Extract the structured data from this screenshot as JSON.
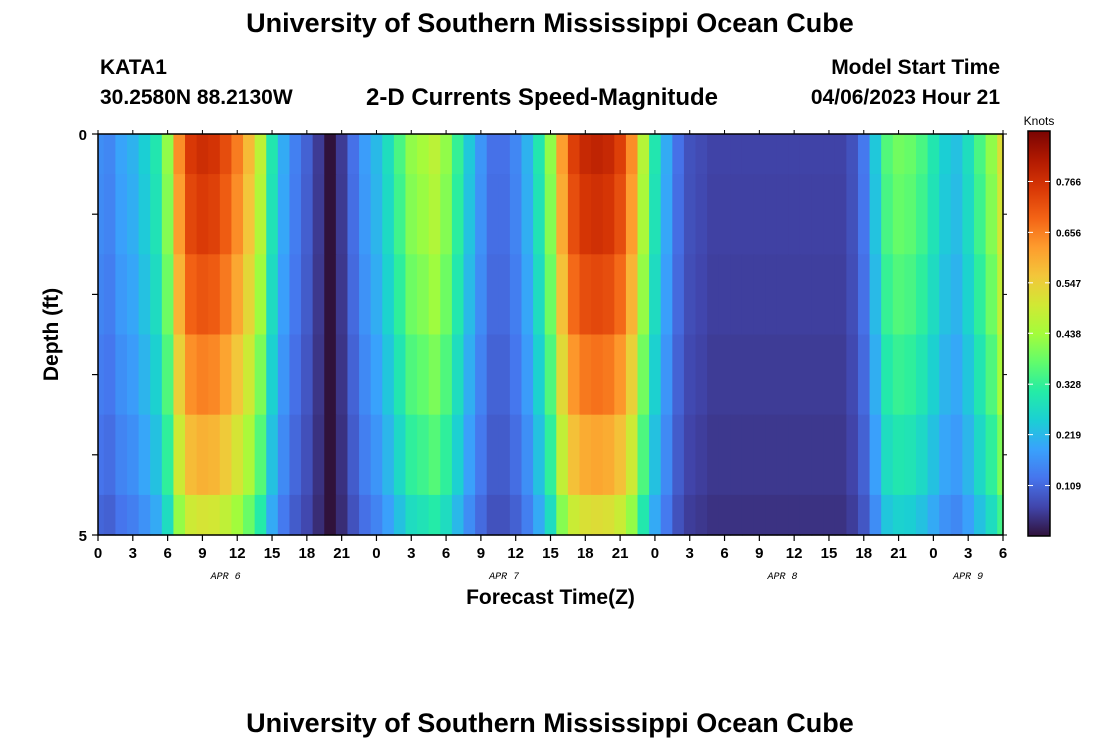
{
  "header": {
    "title": "University of Southern Mississippi Ocean Cube",
    "station": "KATA1",
    "coords": "30.2580N  88.2130W",
    "subtitle": "2-D Currents Speed-Magnitude",
    "model_start_label": "Model Start Time",
    "model_start_value": "04/06/2023 Hour 21"
  },
  "footer": {
    "title": "University of Southern Mississippi Ocean Cube"
  },
  "chart_data": {
    "type": "heatmap",
    "xlabel": "Forecast Time(Z)",
    "ylabel": "Depth (ft)",
    "x_tick_labels": [
      "0",
      "3",
      "6",
      "9",
      "12",
      "15",
      "18",
      "21",
      "0",
      "3",
      "6",
      "9",
      "12",
      "15",
      "18",
      "21",
      "0",
      "3",
      "6",
      "9",
      "12",
      "15",
      "18",
      "21",
      "0",
      "3",
      "6"
    ],
    "date_labels": [
      {
        "label": "APR 6",
        "hour": 11
      },
      {
        "label": "APR 7",
        "hour": 35
      },
      {
        "label": "APR 8",
        "hour": 59
      },
      {
        "label": "APR 9",
        "hour": 75
      }
    ],
    "x_range_hours": [
      0,
      78
    ],
    "y_tick_labels": [
      "0",
      "5"
    ],
    "ylim": [
      0,
      5
    ],
    "colorbar": {
      "title": "Knots",
      "ticks": [
        "0.109",
        "0.219",
        "0.328",
        "0.438",
        "0.547",
        "0.656",
        "0.766"
      ],
      "range": [
        0,
        0.875
      ]
    },
    "colors": {
      "scale": [
        "#30123b",
        "#4145ab",
        "#4675ed",
        "#39a2fc",
        "#1bcfd4",
        "#24eca6",
        "#61fc6c",
        "#a4fc3b",
        "#d1e834",
        "#f3c63a",
        "#fe9b2d",
        "#f36315",
        "#d93806",
        "#b11901",
        "#7a0402"
      ]
    },
    "depth_rows": [
      0,
      1,
      2,
      3,
      4,
      5
    ],
    "hours": [
      0,
      1,
      2,
      3,
      4,
      5,
      6,
      7,
      8,
      9,
      10,
      11,
      12,
      13,
      14,
      15,
      16,
      17,
      18,
      19,
      20,
      21,
      22,
      23,
      24,
      25,
      26,
      27,
      28,
      29,
      30,
      31,
      32,
      33,
      34,
      35,
      36,
      37,
      38,
      39,
      40,
      41,
      42,
      43,
      44,
      45,
      46,
      47,
      48,
      49,
      50,
      51,
      52,
      53,
      54,
      55,
      56,
      57,
      58,
      59,
      60,
      61,
      62,
      63,
      64,
      65,
      66,
      67,
      68,
      69,
      70,
      71,
      72,
      73,
      74,
      75,
      76,
      77,
      78
    ],
    "time_profile": [
      0.16,
      0.15,
      0.19,
      0.21,
      0.25,
      0.3,
      0.42,
      0.64,
      0.75,
      0.77,
      0.76,
      0.72,
      0.66,
      0.58,
      0.47,
      0.3,
      0.2,
      0.14,
      0.1,
      0.05,
      0.0,
      0.05,
      0.12,
      0.18,
      0.22,
      0.28,
      0.35,
      0.42,
      0.44,
      0.47,
      0.42,
      0.33,
      0.24,
      0.17,
      0.12,
      0.12,
      0.15,
      0.21,
      0.3,
      0.42,
      0.62,
      0.74,
      0.78,
      0.79,
      0.78,
      0.74,
      0.64,
      0.46,
      0.3,
      0.2,
      0.12,
      0.08,
      0.07,
      0.06,
      0.06,
      0.06,
      0.06,
      0.06,
      0.06,
      0.06,
      0.06,
      0.06,
      0.06,
      0.06,
      0.06,
      0.08,
      0.13,
      0.24,
      0.36,
      0.39,
      0.38,
      0.35,
      0.3,
      0.25,
      0.23,
      0.28,
      0.35,
      0.42,
      0.52
    ],
    "depth_factor": [
      1.0,
      0.97,
      0.92,
      0.85,
      0.77,
      0.66
    ]
  }
}
